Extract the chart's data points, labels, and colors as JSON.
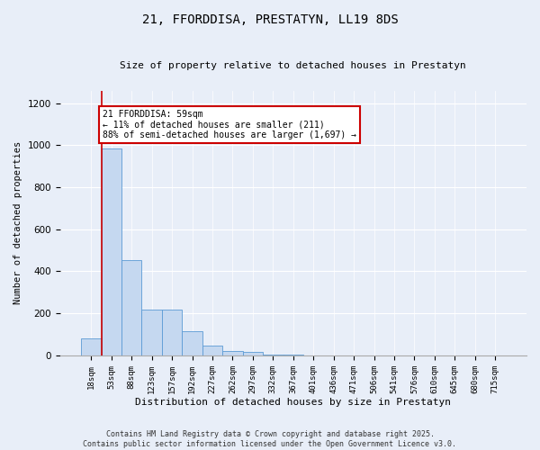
{
  "title": "21, FFORDDISA, PRESTATYN, LL19 8DS",
  "subtitle": "Size of property relative to detached houses in Prestatyn",
  "xlabel": "Distribution of detached houses by size in Prestatyn",
  "ylabel": "Number of detached properties",
  "bar_labels": [
    "18sqm",
    "53sqm",
    "88sqm",
    "123sqm",
    "157sqm",
    "192sqm",
    "227sqm",
    "262sqm",
    "297sqm",
    "332sqm",
    "367sqm",
    "401sqm",
    "436sqm",
    "471sqm",
    "506sqm",
    "541sqm",
    "576sqm",
    "610sqm",
    "645sqm",
    "680sqm",
    "715sqm"
  ],
  "bar_values": [
    80,
    985,
    455,
    220,
    220,
    115,
    45,
    20,
    15,
    5,
    5,
    0,
    0,
    0,
    0,
    0,
    0,
    0,
    0,
    0,
    0
  ],
  "bar_color": "#c5d8f0",
  "bar_edge_color": "#5b9bd5",
  "property_line_x": 1,
  "annotation_title": "21 FFORDDISA: 59sqm",
  "annotation_line1": "← 11% of detached houses are smaller (211)",
  "annotation_line2": "88% of semi-detached houses are larger (1,697) →",
  "annotation_box_color": "#ffffff",
  "annotation_box_edge": "#cc0000",
  "ylim": [
    0,
    1260
  ],
  "yticks": [
    0,
    200,
    400,
    600,
    800,
    1000,
    1200
  ],
  "background_color": "#e8eef8",
  "plot_bg_color": "#e8eef8",
  "footer_line1": "Contains HM Land Registry data © Crown copyright and database right 2025.",
  "footer_line2": "Contains public sector information licensed under the Open Government Licence v3.0."
}
